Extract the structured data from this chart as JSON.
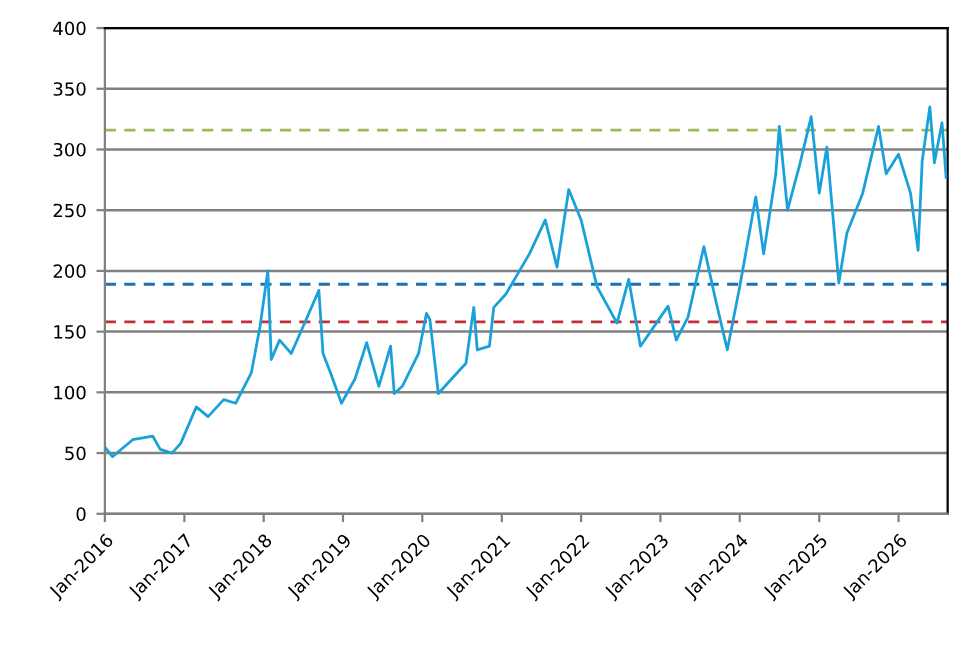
{
  "chart_data": {
    "type": "line",
    "x": [
      "2016-01-01",
      "2016-02-05",
      "2016-05-08",
      "2016-08-08",
      "2016-09-12",
      "2016-11-05",
      "2016-12-15",
      "2017-02-25",
      "2017-04-20",
      "2017-07-01",
      "2017-08-25",
      "2017-11-05",
      "2017-12-15",
      "2018-01-20",
      "2018-02-05",
      "2018-03-15",
      "2018-05-08",
      "2018-07-01",
      "2018-09-12",
      "2018-10-01",
      "2018-11-05",
      "2018-12-25",
      "2019-02-25",
      "2019-04-20",
      "2019-06-15",
      "2019-08-08",
      "2019-08-25",
      "2019-10-01",
      "2019-12-15",
      "2020-01-20",
      "2020-02-05",
      "2020-03-15",
      "2020-05-25",
      "2020-07-20",
      "2020-08-25",
      "2020-09-10",
      "2020-11-05",
      "2020-11-25",
      "2021-01-20",
      "2021-05-08",
      "2021-07-20",
      "2021-09-12",
      "2021-11-05",
      "2022-01-01",
      "2022-03-15",
      "2022-06-15",
      "2022-08-08",
      "2022-10-01",
      "2023-02-05",
      "2023-03-15",
      "2023-05-08",
      "2023-07-20",
      "2023-09-12",
      "2023-11-05",
      "2024-01-01",
      "2024-03-15",
      "2024-04-20",
      "2024-06-15",
      "2024-07-01",
      "2024-08-08",
      "2024-10-01",
      "2024-11-25",
      "2025-01-01",
      "2025-02-05",
      "2025-04-01",
      "2025-05-08",
      "2025-07-20",
      "2025-10-01",
      "2025-11-05",
      "2026-01-01",
      "2026-02-25",
      "2026-04-01",
      "2026-04-20",
      "2026-05-25",
      "2026-06-15",
      "2026-07-20",
      "2026-08-08"
    ],
    "series": [
      {
        "color": "#1ba1d9",
        "values": [
          55,
          47,
          61,
          64,
          53,
          50,
          58,
          88,
          80,
          94,
          91,
          116,
          154,
          200,
          127,
          143,
          132,
          154,
          184,
          132,
          116,
          91,
          111,
          141,
          105,
          138,
          99,
          105,
          132,
          165,
          160,
          99,
          113,
          124,
          170,
          135,
          138,
          170,
          181,
          214,
          242,
          203,
          267,
          242,
          187,
          157,
          193,
          138,
          171,
          143,
          162,
          220,
          176,
          135,
          187,
          261,
          214,
          280,
          319,
          250,
          286,
          327,
          264,
          302,
          190,
          231,
          264,
          319,
          280,
          296,
          264,
          217,
          291,
          335,
          289,
          322,
          277
        ]
      }
    ],
    "xlim": [
      "2016-01-01",
      "2026-08-15"
    ],
    "xticks": [
      {
        "value": "2016-01-01",
        "label": "Jan-2016"
      },
      {
        "value": "2017-01-01",
        "label": "Jan-2017"
      },
      {
        "value": "2018-01-01",
        "label": "Jan-2018"
      },
      {
        "value": "2019-01-01",
        "label": "Jan-2019"
      },
      {
        "value": "2020-01-01",
        "label": "Jan-2020"
      },
      {
        "value": "2021-01-01",
        "label": "Jan-2021"
      },
      {
        "value": "2022-01-01",
        "label": "Jan-2022"
      },
      {
        "value": "2023-01-01",
        "label": "Jan-2023"
      },
      {
        "value": "2024-01-01",
        "label": "Jan-2024"
      },
      {
        "value": "2025-01-01",
        "label": "Jan-2025"
      },
      {
        "value": "2026-01-01",
        "label": "Jan-2026"
      }
    ],
    "ylim": [
      0,
      400
    ],
    "yticks": [
      0,
      50,
      100,
      150,
      200,
      250,
      300,
      350,
      400
    ],
    "ref_lines": [
      {
        "axis": "y",
        "value": 316,
        "color": "#9bbb59",
        "line_style": "dashed"
      },
      {
        "axis": "y",
        "value": 189,
        "color": "#1f6fb4",
        "line_style": "dashed"
      },
      {
        "axis": "y",
        "value": 158,
        "color": "#c0303d",
        "line_style": "dashed"
      }
    ],
    "grid": "y",
    "legend": false,
    "marker": "none",
    "line_style": "solid"
  }
}
